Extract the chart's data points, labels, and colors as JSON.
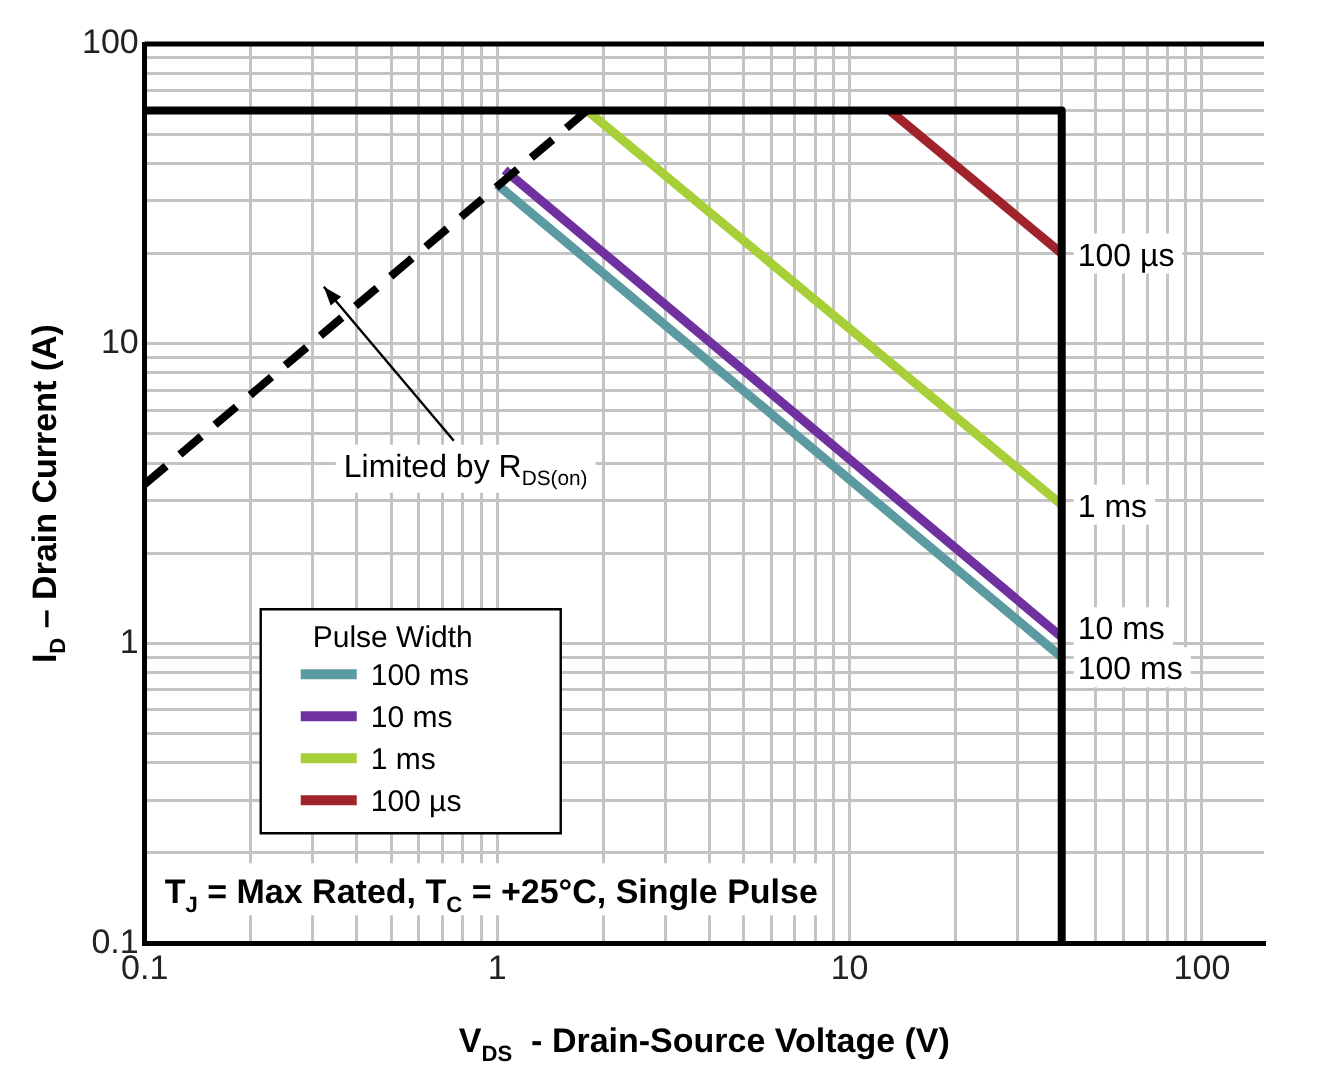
{
  "chart_data": {
    "type": "line",
    "xlabel": "V$_{DS}$  - Drain-Source Voltage (V)",
    "ylabel": "I$_{D}$ – Drain Current (A)",
    "legend_title": "Pulse Width",
    "log": "xy",
    "grid": true,
    "legend": "bottom left",
    "xlim": [
      0.1,
      150
    ],
    "ylim": [
      0.1,
      100
    ],
    "xticks": [
      0.1,
      {
        "value": 0.2,
        "label": null
      },
      {
        "value": 0.3,
        "label": null
      },
      {
        "value": 0.4,
        "label": null
      },
      {
        "value": 0.5,
        "label": null
      },
      {
        "value": 0.6,
        "label": null
      },
      {
        "value": 0.7,
        "label": null
      },
      {
        "value": 0.8,
        "label": null
      },
      {
        "value": 0.9,
        "label": null
      },
      1,
      {
        "value": 2,
        "label": null
      },
      {
        "value": 3,
        "label": null
      },
      {
        "value": 4,
        "label": null
      },
      {
        "value": 5,
        "label": null
      },
      {
        "value": 6,
        "label": null
      },
      {
        "value": 7,
        "label": null
      },
      {
        "value": 8,
        "label": null
      },
      {
        "value": 9,
        "label": null
      },
      10,
      {
        "value": 20,
        "label": null
      },
      {
        "value": 30,
        "label": null
      },
      {
        "value": 40,
        "label": null
      },
      {
        "value": 50,
        "label": null
      },
      {
        "value": 60,
        "label": null
      },
      {
        "value": 70,
        "label": null
      },
      {
        "value": 80,
        "label": null
      },
      {
        "value": 90,
        "label": null
      },
      100
    ],
    "yticks": [
      0.1,
      {
        "value": 0.2,
        "label": null
      },
      {
        "value": 0.3,
        "label": null
      },
      {
        "value": 0.4,
        "label": null
      },
      {
        "value": 0.5,
        "label": null
      },
      {
        "value": 0.6,
        "label": null
      },
      {
        "value": 0.7,
        "label": null
      },
      {
        "value": 0.8,
        "label": null
      },
      {
        "value": 0.9,
        "label": null
      },
      1,
      {
        "value": 2,
        "label": null
      },
      {
        "value": 3,
        "label": null
      },
      {
        "value": 4,
        "label": null
      },
      {
        "value": 5,
        "label": null
      },
      {
        "value": 6,
        "label": null
      },
      {
        "value": 7,
        "label": null
      },
      {
        "value": 8,
        "label": null
      },
      {
        "value": 9,
        "label": null
      },
      10,
      {
        "value": 20,
        "label": null
      },
      {
        "value": 30,
        "label": null
      },
      {
        "value": 40,
        "label": null
      },
      {
        "value": 50,
        "label": null
      },
      {
        "value": 60,
        "label": null
      },
      {
        "value": 70,
        "label": null
      },
      {
        "value": 80,
        "label": null
      },
      {
        "value": 90,
        "label": null
      },
      100
    ],
    "series": [
      {
        "color": "#000000",
        "x": [
          0.1,
          40,
          40
        ],
        "values": [
          60,
          60,
          0.1
        ]
      },
      {
        "color": "#000000",
        "line_style": "dashed",
        "x": [
          0.1,
          1.8
        ],
        "values": [
          3.4,
          60
        ]
      },
      {
        "name": "100 ms",
        "color": "#5b9aa0",
        "x": [
          1,
          40
        ],
        "values": [
          34,
          0.9
        ]
      },
      {
        "name": "10 ms",
        "color": "#7030a0",
        "x": [
          1.05,
          40
        ],
        "values": [
          38,
          1.05
        ]
      },
      {
        "name": "1 ms",
        "color": "#a6cf38",
        "x": [
          1.8,
          40
        ],
        "values": [
          60,
          2.9
        ]
      },
      {
        "name": "100 µs",
        "color": "#a0222a",
        "x": [
          13,
          40
        ],
        "values": [
          60,
          20
        ]
      }
    ],
    "annotations": [
      "Limited by R$_{DS(on)}$",
      "T$_{J}$ = Max Rated, T$_{C}$ = +25°C, Single Pulse"
    ]
  }
}
